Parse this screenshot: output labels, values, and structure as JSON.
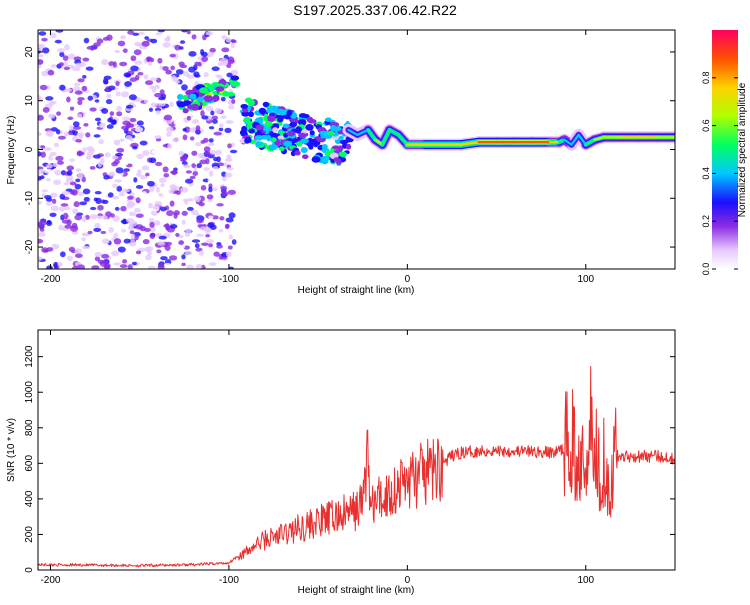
{
  "title": "S197.2025.337.06.42.R22",
  "chart_data": [
    {
      "type": "heatmap",
      "xlabel": "Height of straight line (km)",
      "ylabel": "Frequency (Hz)",
      "xlim": [
        -207,
        150
      ],
      "ylim": [
        -24.5,
        24.5
      ],
      "xticks": [
        -200,
        -100,
        0,
        100
      ],
      "xtick_labels": [
        "-200",
        "-100",
        "0",
        "100"
      ],
      "yticks": [
        -20,
        -10,
        0,
        10,
        20
      ],
      "ytick_labels": [
        "-20",
        "-10",
        "0",
        "10",
        "20"
      ],
      "colorbar": {
        "label": "Normalized spectral amplitude",
        "range": [
          0,
          1
        ],
        "ticks": [
          0.0,
          0.2,
          0.4,
          0.6,
          0.8
        ],
        "tick_labels": [
          "0.0",
          "0.2",
          "0.4",
          "0.6",
          "0.8"
        ]
      },
      "ridge": {
        "x": [
          -33,
          -28,
          -22,
          -18,
          -14,
          -10,
          -5,
          0,
          10,
          20,
          30,
          40,
          50,
          60,
          70,
          80,
          85,
          88,
          92,
          96,
          100,
          105,
          110,
          120,
          130,
          140,
          150
        ],
        "freq": [
          4,
          3,
          4,
          2,
          1,
          4,
          3,
          1,
          1,
          1,
          1,
          1.5,
          1.5,
          1.5,
          1.5,
          1.5,
          1.5,
          2,
          1,
          3,
          1,
          2,
          2.5,
          2.5,
          2.5,
          2.5,
          2.5
        ],
        "amplitude": [
          0.55,
          0.5,
          0.6,
          0.7,
          0.8,
          0.6,
          0.65,
          0.9,
          0.95,
          0.95,
          0.95,
          1.0,
          1.0,
          1.0,
          1.0,
          1.0,
          0.9,
          0.6,
          0.55,
          0.5,
          0.6,
          0.7,
          0.8,
          0.85,
          0.85,
          0.85,
          0.8
        ]
      }
    },
    {
      "type": "line",
      "xlabel": "Height of straight line (km)",
      "ylabel": "SNR (10 * v/v)",
      "xlim": [
        -207,
        150
      ],
      "ylim": [
        0,
        1350
      ],
      "xticks": [
        -200,
        -100,
        0,
        100
      ],
      "xtick_labels": [
        "-200",
        "-100",
        "0",
        "100"
      ],
      "yticks": [
        0,
        200,
        400,
        600,
        800,
        1000,
        1200
      ],
      "ytick_labels": [
        "0",
        "200",
        "400",
        "600",
        "800",
        "1000",
        "1200"
      ],
      "color": "#e8302f",
      "series": [
        {
          "name": "SNR",
          "x": [
            -207,
            -180,
            -150,
            -120,
            -100,
            -95,
            -90,
            -85,
            -80,
            -70,
            -60,
            -50,
            -40,
            -30,
            -25,
            -22,
            -21,
            -20,
            -18,
            -15,
            -10,
            -5,
            0,
            5,
            10,
            15,
            20,
            25,
            30,
            40,
            50,
            60,
            70,
            80,
            85,
            90,
            92,
            94,
            96,
            98,
            100,
            102,
            104,
            106,
            108,
            110,
            113,
            116,
            120,
            130,
            140,
            150
          ],
          "y": [
            30,
            28,
            25,
            30,
            40,
            80,
            100,
            140,
            170,
            200,
            240,
            270,
            300,
            330,
            380,
            700,
            380,
            350,
            380,
            400,
            430,
            470,
            510,
            520,
            540,
            560,
            600,
            640,
            660,
            670,
            670,
            670,
            665,
            660,
            670,
            700,
            780,
            600,
            560,
            900,
            500,
            1100,
            560,
            700,
            560,
            640,
            480,
            640,
            640,
            640,
            640,
            630
          ]
        }
      ]
    }
  ]
}
